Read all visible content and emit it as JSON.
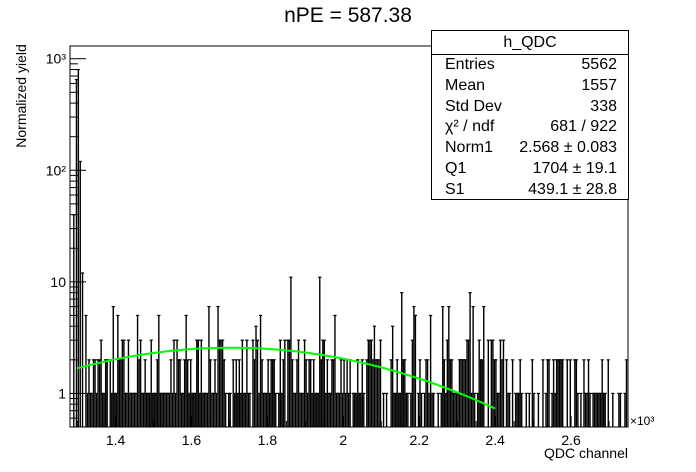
{
  "title": "nPE = 587.38",
  "stats_box": {
    "name": "h_QDC",
    "rows": [
      {
        "label": "Entries",
        "value": "5562"
      },
      {
        "label": "Mean",
        "value": "1557"
      },
      {
        "label": "Std Dev",
        "value": "338"
      },
      {
        "label": "χ² / ndf",
        "value": "681 / 922"
      },
      {
        "label": "Norm1",
        "value": "2.568 ± 0.083"
      },
      {
        "label": "Q1",
        "value": "1704 ± 19.1"
      },
      {
        "label": "S1",
        "value": "439.1 ± 28.8"
      }
    ]
  },
  "chart_data": {
    "type": "histogram",
    "xlabel": "QDC channel",
    "ylabel": "Normalized yield",
    "x_multiplier_label": "×10³",
    "xlim": [
      1280,
      2750
    ],
    "ylim": [
      0.5,
      1300
    ],
    "log_y": true,
    "x_ticks": [
      "1.4",
      "1.6",
      "1.8",
      "2",
      "2.2",
      "2.4",
      "2.6"
    ],
    "x_tick_values": [
      1400,
      1600,
      1800,
      2000,
      2200,
      2400,
      2600
    ],
    "y_ticks": [
      "1",
      "10",
      "10²",
      "10³"
    ],
    "y_tick_values": [
      1,
      10,
      100,
      1000
    ],
    "histogram_color": "#000000",
    "peak_bins": [
      {
        "x": 1290,
        "y": 40
      },
      {
        "x": 1297,
        "y": 650
      },
      {
        "x": 1302,
        "y": 800
      },
      {
        "x": 1307,
        "y": 120
      },
      {
        "x": 1313,
        "y": 12
      }
    ],
    "fit": {
      "color": "#00ff00",
      "function": "Norm1 * exp(-0.5*((x-Q1)/S1)^2)",
      "norm": 2.568,
      "mean": 1704,
      "sigma": 439.1,
      "x_range": [
        1300,
        2400
      ]
    }
  }
}
